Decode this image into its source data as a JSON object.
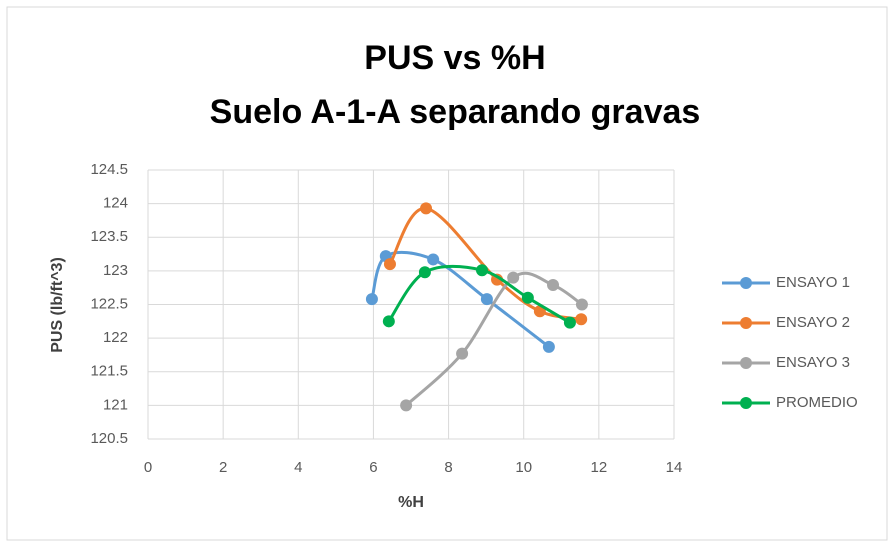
{
  "chart_data": {
    "type": "scatter-smooth",
    "title": "PUS vs %H",
    "subtitle": "Suelo A-1-A separando gravas",
    "x_label": "%H",
    "y_label": "PUS (lb/ft^3)",
    "xlim": [
      0,
      14
    ],
    "xticks": [
      0,
      2,
      4,
      6,
      8,
      10,
      12,
      14
    ],
    "ylim": [
      120.5,
      124.5
    ],
    "yticks": [
      120.5,
      121,
      121.5,
      122,
      122.5,
      123,
      123.5,
      124,
      124.5
    ],
    "grid": true,
    "legend": "right",
    "series": [
      {
        "name": "ENSAYO 1",
        "color": "#5b9bd5",
        "x": [
          5.96,
          6.33,
          7.59,
          9.02,
          10.67
        ],
        "values": [
          122.58,
          123.22,
          123.17,
          122.58,
          121.87
        ]
      },
      {
        "name": "ENSAYO 2",
        "color": "#ed7d31",
        "x": [
          6.44,
          7.4,
          9.29,
          10.43,
          11.53
        ],
        "values": [
          123.1,
          123.93,
          122.87,
          122.4,
          122.28
        ]
      },
      {
        "name": "ENSAYO 3",
        "color": "#a5a5a5",
        "x": [
          6.87,
          8.36,
          9.72,
          10.78,
          11.55
        ],
        "values": [
          121.0,
          121.77,
          122.9,
          122.79,
          122.5
        ]
      },
      {
        "name": "PROMEDIO",
        "color": "#00b050",
        "x": [
          6.41,
          7.37,
          8.89,
          10.11,
          11.23
        ],
        "values": [
          122.25,
          122.98,
          123.01,
          122.6,
          122.23
        ]
      }
    ]
  }
}
